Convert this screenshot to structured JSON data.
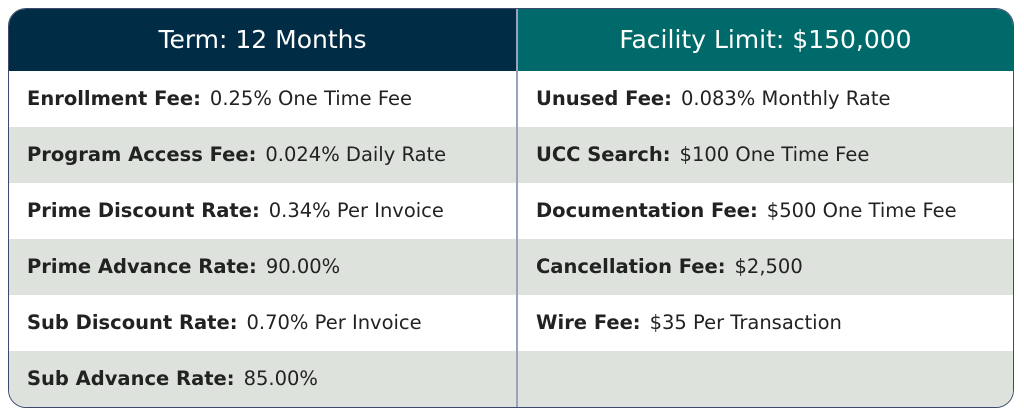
{
  "left": {
    "header": "Term: 12 Months",
    "rows": [
      {
        "label": "Enrollment Fee:",
        "value": "0.25% One Time Fee"
      },
      {
        "label": "Program Access Fee:",
        "value": "0.024% Daily Rate"
      },
      {
        "label": "Prime Discount Rate:",
        "value": "0.34% Per Invoice"
      },
      {
        "label": "Prime Advance Rate:",
        "value": "90.00%"
      },
      {
        "label": "Sub Discount Rate:",
        "value": "0.70% Per Invoice"
      },
      {
        "label": "Sub Advance Rate:",
        "value": "85.00%"
      }
    ]
  },
  "right": {
    "header": "Facility Limit: $150,000",
    "rows": [
      {
        "label": "Unused Fee:",
        "value": "0.083% Monthly Rate"
      },
      {
        "label": "UCC Search:",
        "value": "$100 One Time Fee"
      },
      {
        "label": "Documentation Fee:",
        "value": "$500 One Time Fee"
      },
      {
        "label": "Cancellation Fee:",
        "value": "$2,500"
      },
      {
        "label": "Wire Fee:",
        "value": "$35 Per Transaction"
      },
      {
        "label": "",
        "value": ""
      }
    ]
  },
  "colors": {
    "left_header": "#002c46",
    "right_header": "#006a6b",
    "stripe": "#dde2dd"
  }
}
